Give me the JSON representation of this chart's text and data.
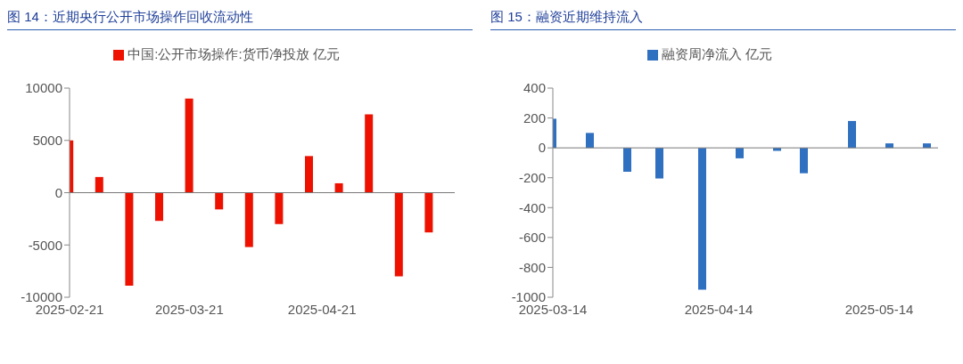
{
  "chart_data": [
    {
      "type": "bar",
      "title": "图 14：近期央行公开市场操作回收流动性",
      "x": [
        "2025-02-21",
        "2025-02-28",
        "2025-03-07",
        "2025-03-14",
        "2025-03-21",
        "2025-03-28",
        "2025-04-04",
        "2025-04-11",
        "2025-04-18",
        "2025-04-25",
        "2025-05-02",
        "2025-05-09",
        "2025-05-16"
      ],
      "series": [
        {
          "name": "中国:公开市场操作:货币净投放 亿元",
          "color": "#ee1100",
          "values": [
            5000,
            1500,
            -8900,
            -2700,
            9000,
            -1600,
            -5200,
            -3000,
            3500,
            900,
            7500,
            -8000,
            -3800
          ]
        }
      ],
      "xlim": [
        "2025-02-21",
        "2025-05-22"
      ],
      "xticks": [
        "2025-02-21",
        "2025-03-21",
        "2025-04-21"
      ],
      "ylim": [
        -10000,
        10000
      ],
      "yticks": [
        -10000,
        -5000,
        0,
        5000,
        10000
      ],
      "ref_lines": [
        {
          "axis": "y",
          "value": 0,
          "color": "#777777"
        }
      ],
      "legend": "top"
    },
    {
      "type": "bar",
      "title": "图 15：融资近期维持流入",
      "x": [
        "2025-03-14",
        "2025-03-21",
        "2025-03-28",
        "2025-04-03",
        "2025-04-11",
        "2025-04-18",
        "2025-04-25",
        "2025-04-30",
        "2025-05-09",
        "2025-05-16",
        "2025-05-23"
      ],
      "series": [
        {
          "name": "融资周净流入 亿元",
          "color": "#3070c0",
          "values": [
            195,
            100,
            -160,
            -205,
            -950,
            -70,
            -20,
            -170,
            180,
            30,
            30
          ]
        }
      ],
      "xlim": [
        "2025-03-14",
        "2025-05-25"
      ],
      "xticks": [
        "2025-03-14",
        "2025-04-14",
        "2025-05-14"
      ],
      "ylim": [
        -1000,
        400
      ],
      "yticks": [
        -1000,
        -800,
        -600,
        -400,
        -200,
        0,
        200,
        400
      ],
      "ref_lines": [
        {
          "axis": "y",
          "value": 0,
          "color": "#777777"
        }
      ],
      "legend": "top"
    }
  ]
}
